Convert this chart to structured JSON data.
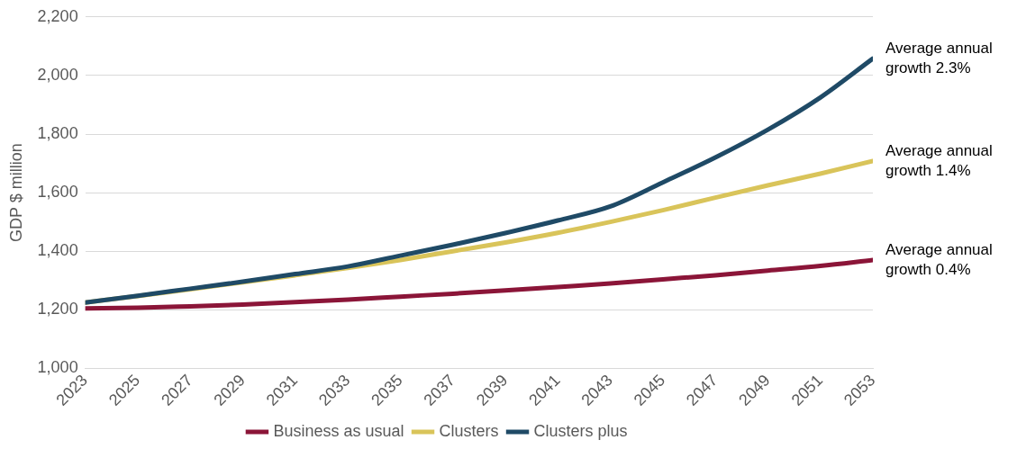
{
  "chart_data": {
    "type": "line",
    "ylabel": "GDP $ million",
    "x": [
      2023,
      2025,
      2027,
      2029,
      2031,
      2033,
      2035,
      2037,
      2039,
      2041,
      2043,
      2045,
      2047,
      2049,
      2051,
      2053
    ],
    "xlim": [
      2023,
      2053
    ],
    "xticks": [
      2023,
      2025,
      2027,
      2029,
      2031,
      2033,
      2035,
      2037,
      2039,
      2041,
      2043,
      2045,
      2047,
      2049,
      2051,
      2053
    ],
    "ylim": [
      1000,
      2200
    ],
    "yticks": [
      {
        "value": 1000,
        "label": "1,000"
      },
      {
        "value": 1200,
        "label": "1,200"
      },
      {
        "value": 1400,
        "label": "1,400"
      },
      {
        "value": 1600,
        "label": "1,600"
      },
      {
        "value": 1800,
        "label": "1,800"
      },
      {
        "value": 2000,
        "label": "2,000"
      },
      {
        "value": 2200,
        "label": "2,200"
      }
    ],
    "series": [
      {
        "name": "Business as usual",
        "color": "#8b1538",
        "values": [
          1205,
          1207,
          1212,
          1218,
          1226,
          1235,
          1245,
          1255,
          1266,
          1278,
          1290,
          1304,
          1318,
          1334,
          1350,
          1370
        ]
      },
      {
        "name": "Clusters",
        "color": "#d9c45a",
        "values": [
          1225,
          1247,
          1270,
          1294,
          1318,
          1343,
          1370,
          1400,
          1430,
          1463,
          1500,
          1540,
          1583,
          1625,
          1665,
          1708
        ]
      },
      {
        "name": "Clusters plus",
        "color": "#1f4a66",
        "values": [
          1225,
          1248,
          1272,
          1296,
          1322,
          1348,
          1385,
          1422,
          1462,
          1505,
          1553,
          1635,
          1720,
          1815,
          1925,
          2058
        ]
      }
    ],
    "annotations": [
      "Average annual growth 2.3%",
      "Average annual growth 1.4%",
      "Average annual growth 0.4%"
    ],
    "grid": "y",
    "legend": "bottom",
    "marker": "none",
    "line_style": "solid"
  }
}
